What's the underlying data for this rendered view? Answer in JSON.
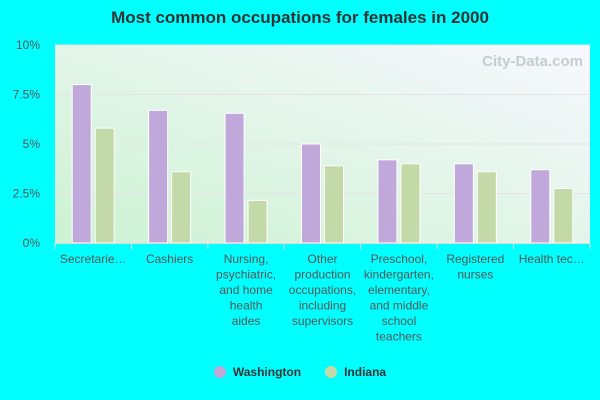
{
  "chart_data": {
    "type": "bar",
    "title": "Most common occupations for females in 2000",
    "categories": [
      [
        "Secretarie…"
      ],
      [
        "Cashiers"
      ],
      [
        "Nursing,",
        "psychiatric,",
        "and home",
        "health",
        "aides"
      ],
      [
        "Other",
        "production",
        "occupations,",
        "including",
        "supervisors"
      ],
      [
        "Preschool,",
        "kindergarten,",
        "elementary,",
        "and middle",
        "school",
        "teachers"
      ],
      [
        "Registered",
        "nurses"
      ],
      [
        "Health tec…"
      ]
    ],
    "series": [
      {
        "name": "Washington",
        "color": "#c0a8da",
        "values": [
          8.0,
          6.7,
          6.55,
          5.0,
          4.2,
          4.0,
          3.7
        ]
      },
      {
        "name": "Indiana",
        "color": "#c4d9a8",
        "values": [
          5.8,
          3.6,
          2.15,
          3.9,
          4.0,
          3.6,
          2.75
        ]
      }
    ],
    "y_ticks": [
      "0%",
      "2.5%",
      "5%",
      "7.5%",
      "10%"
    ],
    "ylim": [
      0,
      10
    ],
    "grid": true,
    "legend": "bottom",
    "watermark": "City-Data.com"
  }
}
